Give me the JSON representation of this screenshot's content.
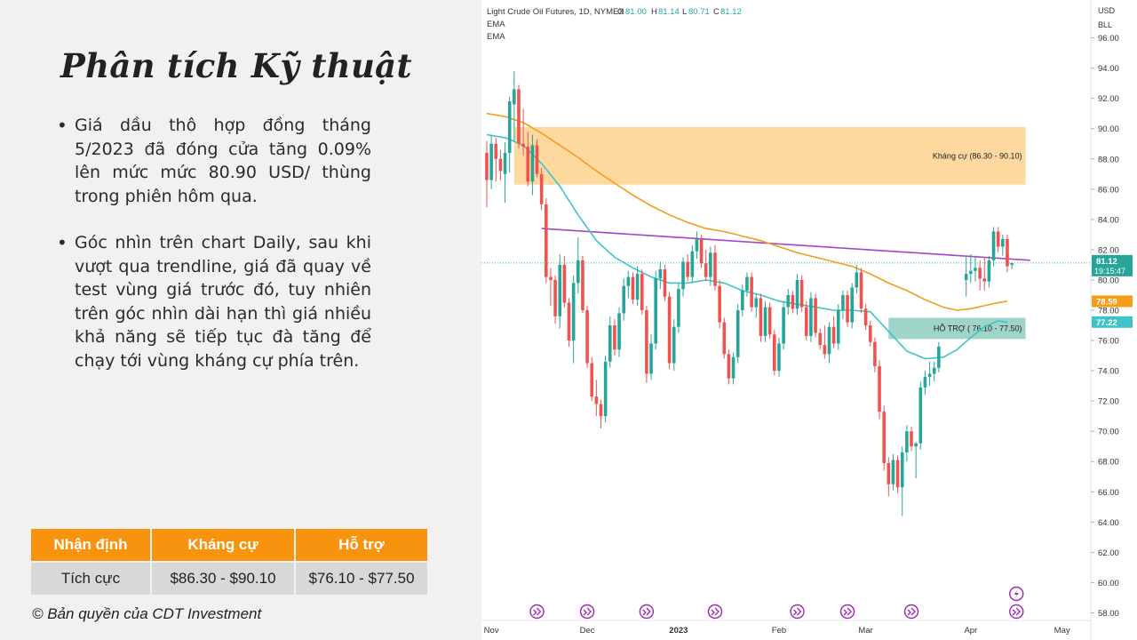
{
  "slide": {
    "title": "Phân tích Kỹ thuật",
    "bullets": [
      "Giá dầu thô hợp đồng tháng 5/2023 đã đóng cửa tăng 0.09% lên mức mức 80.90 USD/ thùng trong phiên hôm qua.",
      "Góc nhìn trên chart Daily, sau khi vượt qua trendline, giá đã quay về test vùng giá trước đó, tuy nhiên trên góc nhìn dài hạn thì giá nhiều khả năng sẽ tiếp tục đà tăng để chạy tới vùng kháng cự phía trên."
    ],
    "table": {
      "headers": [
        "Nhận định",
        "Kháng cự",
        "Hỗ trợ"
      ],
      "row": [
        "Tích cực",
        "$86.30 - $90.10",
        "$76.10 - $77.50"
      ]
    },
    "copyright": "© Bản quyền của CDT Investment"
  },
  "chart_data": {
    "type": "candlestick",
    "header": {
      "symbol": "Light Crude Oil Futures, 1D, NYMEX",
      "o_label": "O",
      "o_value": "81.00",
      "h_label": "H",
      "h_value": "81.14",
      "l_label": "L",
      "l_value": "80.71",
      "c_label": "C",
      "c_value": "81.12",
      "indicators": [
        "EMA",
        "EMA"
      ]
    },
    "currency": "USD",
    "unit": "BLL",
    "y_ticks": [
      "58.00",
      "60.00",
      "62.00",
      "64.00",
      "66.00",
      "68.00",
      "70.00",
      "72.00",
      "74.00",
      "76.00",
      "78.00",
      "80.00",
      "82.00",
      "84.00",
      "86.00",
      "88.00",
      "90.00",
      "92.00",
      "94.00",
      "96.00"
    ],
    "ylim": [
      57.5,
      98.5
    ],
    "x_ticks": [
      {
        "label": "Nov",
        "index": 1
      },
      {
        "label": "Dec",
        "index": 22
      },
      {
        "label": "2023",
        "index": 42
      },
      {
        "label": "Feb",
        "index": 64
      },
      {
        "label": "Mar",
        "index": 83
      },
      {
        "label": "Apr",
        "index": 106
      },
      {
        "label": "May",
        "index": 126
      }
    ],
    "n_slots": 130,
    "candles": [
      {
        "i": 0,
        "o": 88.4,
        "h": 89.2,
        "l": 84.8,
        "c": 86.6
      },
      {
        "i": 1,
        "o": 86.6,
        "h": 89.6,
        "l": 86.0,
        "c": 89.0
      },
      {
        "i": 2,
        "o": 89.0,
        "h": 89.4,
        "l": 86.5,
        "c": 88.0
      },
      {
        "i": 3,
        "o": 88.0,
        "h": 88.6,
        "l": 86.6,
        "c": 87.2
      },
      {
        "i": 4,
        "o": 87.0,
        "h": 89.1,
        "l": 85.1,
        "c": 88.4
      },
      {
        "i": 5,
        "o": 88.4,
        "h": 92.1,
        "l": 87.1,
        "c": 91.8
      },
      {
        "i": 6,
        "o": 91.6,
        "h": 93.8,
        "l": 89.2,
        "c": 92.6
      },
      {
        "i": 7,
        "o": 92.6,
        "h": 92.9,
        "l": 88.7,
        "c": 89.0
      },
      {
        "i": 8,
        "o": 89.0,
        "h": 91.3,
        "l": 88.2,
        "c": 88.8
      },
      {
        "i": 9,
        "o": 88.8,
        "h": 89.8,
        "l": 86.2,
        "c": 86.5
      },
      {
        "i": 10,
        "o": 86.5,
        "h": 89.6,
        "l": 85.6,
        "c": 88.9
      },
      {
        "i": 11,
        "o": 88.9,
        "h": 89.3,
        "l": 86.8,
        "c": 87.0
      },
      {
        "i": 12,
        "o": 87.0,
        "h": 87.4,
        "l": 84.6,
        "c": 85.0
      },
      {
        "i": 13,
        "o": 85.0,
        "h": 85.4,
        "l": 79.8,
        "c": 80.2
      },
      {
        "i": 14,
        "o": 80.2,
        "h": 80.8,
        "l": 78.3,
        "c": 80.0
      },
      {
        "i": 15,
        "o": 80.0,
        "h": 80.3,
        "l": 77.1,
        "c": 77.6
      },
      {
        "i": 16,
        "o": 77.6,
        "h": 81.7,
        "l": 76.8,
        "c": 81.0
      },
      {
        "i": 17,
        "o": 81.0,
        "h": 81.6,
        "l": 78.2,
        "c": 78.5
      },
      {
        "i": 18,
        "o": 78.5,
        "h": 78.8,
        "l": 75.6,
        "c": 76.0
      },
      {
        "i": 19,
        "o": 76.0,
        "h": 80.3,
        "l": 74.5,
        "c": 79.8
      },
      {
        "i": 20,
        "o": 79.8,
        "h": 82.8,
        "l": 79.1,
        "c": 81.3
      },
      {
        "i": 21,
        "o": 81.3,
        "h": 81.6,
        "l": 77.8,
        "c": 78.0
      },
      {
        "i": 22,
        "o": 78.0,
        "h": 78.3,
        "l": 74.2,
        "c": 74.5
      },
      {
        "i": 23,
        "o": 74.5,
        "h": 74.9,
        "l": 72.0,
        "c": 72.3
      },
      {
        "i": 24,
        "o": 72.3,
        "h": 73.4,
        "l": 71.0,
        "c": 71.8
      },
      {
        "i": 25,
        "o": 71.8,
        "h": 72.1,
        "l": 70.2,
        "c": 71.0
      },
      {
        "i": 26,
        "o": 71.0,
        "h": 75.0,
        "l": 70.6,
        "c": 74.6
      },
      {
        "i": 27,
        "o": 74.6,
        "h": 77.6,
        "l": 74.2,
        "c": 77.0
      },
      {
        "i": 28,
        "o": 77.0,
        "h": 77.4,
        "l": 75.0,
        "c": 75.4
      },
      {
        "i": 29,
        "o": 75.4,
        "h": 78.2,
        "l": 74.9,
        "c": 77.8
      },
      {
        "i": 30,
        "o": 77.8,
        "h": 80.1,
        "l": 77.3,
        "c": 79.6
      },
      {
        "i": 31,
        "o": 79.6,
        "h": 80.6,
        "l": 78.8,
        "c": 80.2
      },
      {
        "i": 32,
        "o": 80.2,
        "h": 80.5,
        "l": 78.4,
        "c": 78.7
      },
      {
        "i": 33,
        "o": 78.7,
        "h": 80.9,
        "l": 78.3,
        "c": 80.4
      },
      {
        "i": 34,
        "o": 80.4,
        "h": 80.7,
        "l": 77.7,
        "c": 78.0
      },
      {
        "i": 35,
        "o": 78.0,
        "h": 78.3,
        "l": 73.2,
        "c": 73.8
      },
      {
        "i": 36,
        "o": 73.8,
        "h": 76.4,
        "l": 73.4,
        "c": 75.8
      },
      {
        "i": 37,
        "o": 75.8,
        "h": 80.6,
        "l": 75.4,
        "c": 80.1
      },
      {
        "i": 38,
        "o": 80.1,
        "h": 81.2,
        "l": 79.4,
        "c": 80.7
      },
      {
        "i": 39,
        "o": 80.7,
        "h": 81.0,
        "l": 78.6,
        "c": 78.9
      },
      {
        "i": 40,
        "o": 78.9,
        "h": 79.2,
        "l": 74.1,
        "c": 74.5
      },
      {
        "i": 41,
        "o": 74.5,
        "h": 77.4,
        "l": 74.0,
        "c": 76.9
      },
      {
        "i": 42,
        "o": 76.9,
        "h": 79.8,
        "l": 76.5,
        "c": 79.4
      },
      {
        "i": 43,
        "o": 79.4,
        "h": 81.5,
        "l": 78.9,
        "c": 81.2
      },
      {
        "i": 44,
        "o": 81.2,
        "h": 81.7,
        "l": 79.9,
        "c": 80.2
      },
      {
        "i": 45,
        "o": 80.2,
        "h": 82.3,
        "l": 79.8,
        "c": 81.9
      },
      {
        "i": 46,
        "o": 81.9,
        "h": 83.2,
        "l": 81.4,
        "c": 82.7
      },
      {
        "i": 47,
        "o": 82.7,
        "h": 83.0,
        "l": 80.8,
        "c": 81.1
      },
      {
        "i": 48,
        "o": 81.1,
        "h": 82.0,
        "l": 79.9,
        "c": 80.2
      },
      {
        "i": 49,
        "o": 80.2,
        "h": 82.2,
        "l": 79.6,
        "c": 81.8
      },
      {
        "i": 50,
        "o": 81.8,
        "h": 82.3,
        "l": 79.3,
        "c": 79.6
      },
      {
        "i": 51,
        "o": 79.6,
        "h": 80.0,
        "l": 76.8,
        "c": 77.2
      },
      {
        "i": 52,
        "o": 77.2,
        "h": 77.5,
        "l": 74.8,
        "c": 75.1
      },
      {
        "i": 53,
        "o": 75.1,
        "h": 75.4,
        "l": 73.1,
        "c": 73.5
      },
      {
        "i": 54,
        "o": 73.5,
        "h": 75.2,
        "l": 73.1,
        "c": 74.9
      },
      {
        "i": 55,
        "o": 74.9,
        "h": 78.4,
        "l": 74.5,
        "c": 78.0
      },
      {
        "i": 56,
        "o": 78.0,
        "h": 79.7,
        "l": 77.6,
        "c": 79.3
      },
      {
        "i": 57,
        "o": 79.3,
        "h": 80.5,
        "l": 78.9,
        "c": 80.2
      },
      {
        "i": 58,
        "o": 80.2,
        "h": 80.5,
        "l": 77.9,
        "c": 78.2
      },
      {
        "i": 59,
        "o": 78.2,
        "h": 79.1,
        "l": 77.5,
        "c": 78.8
      },
      {
        "i": 60,
        "o": 78.8,
        "h": 79.1,
        "l": 75.9,
        "c": 76.3
      },
      {
        "i": 61,
        "o": 76.3,
        "h": 78.6,
        "l": 75.9,
        "c": 78.2
      },
      {
        "i": 62,
        "o": 78.2,
        "h": 78.5,
        "l": 76.1,
        "c": 76.4
      },
      {
        "i": 63,
        "o": 76.4,
        "h": 76.7,
        "l": 73.7,
        "c": 74.0
      },
      {
        "i": 64,
        "o": 74.0,
        "h": 76.2,
        "l": 73.6,
        "c": 75.8
      },
      {
        "i": 65,
        "o": 75.8,
        "h": 78.6,
        "l": 75.4,
        "c": 78.2
      },
      {
        "i": 66,
        "o": 78.2,
        "h": 79.4,
        "l": 77.7,
        "c": 79.0
      },
      {
        "i": 67,
        "o": 79.0,
        "h": 79.3,
        "l": 77.8,
        "c": 78.1
      },
      {
        "i": 68,
        "o": 78.1,
        "h": 80.4,
        "l": 77.7,
        "c": 80.0
      },
      {
        "i": 69,
        "o": 80.0,
        "h": 80.3,
        "l": 77.9,
        "c": 78.2
      },
      {
        "i": 70,
        "o": 78.2,
        "h": 78.6,
        "l": 76.0,
        "c": 76.3
      },
      {
        "i": 71,
        "o": 76.3,
        "h": 79.2,
        "l": 75.9,
        "c": 78.8
      },
      {
        "i": 72,
        "o": 78.8,
        "h": 79.1,
        "l": 76.2,
        "c": 76.5
      },
      {
        "i": 73,
        "o": 76.5,
        "h": 76.8,
        "l": 75.4,
        "c": 75.7
      },
      {
        "i": 74,
        "o": 75.7,
        "h": 77.0,
        "l": 74.8,
        "c": 75.1
      },
      {
        "i": 75,
        "o": 75.1,
        "h": 77.2,
        "l": 74.5,
        "c": 76.9
      },
      {
        "i": 76,
        "o": 76.9,
        "h": 77.6,
        "l": 75.5,
        "c": 75.8
      },
      {
        "i": 77,
        "o": 75.8,
        "h": 78.4,
        "l": 75.4,
        "c": 78.0
      },
      {
        "i": 78,
        "o": 78.0,
        "h": 79.3,
        "l": 77.4,
        "c": 79.0
      },
      {
        "i": 79,
        "o": 79.0,
        "h": 79.3,
        "l": 76.9,
        "c": 77.2
      },
      {
        "i": 80,
        "o": 77.2,
        "h": 79.8,
        "l": 76.8,
        "c": 79.5
      },
      {
        "i": 81,
        "o": 79.5,
        "h": 81.0,
        "l": 79.1,
        "c": 80.5
      },
      {
        "i": 82,
        "o": 80.5,
        "h": 80.8,
        "l": 77.8,
        "c": 78.1
      },
      {
        "i": 83,
        "o": 78.1,
        "h": 78.4,
        "l": 76.7,
        "c": 77.0
      },
      {
        "i": 84,
        "o": 77.0,
        "h": 77.3,
        "l": 75.6,
        "c": 75.9
      },
      {
        "i": 85,
        "o": 75.9,
        "h": 76.2,
        "l": 73.9,
        "c": 74.3
      },
      {
        "i": 86,
        "o": 74.3,
        "h": 74.7,
        "l": 70.8,
        "c": 71.3
      },
      {
        "i": 87,
        "o": 71.3,
        "h": 71.7,
        "l": 67.4,
        "c": 67.9
      },
      {
        "i": 88,
        "o": 67.9,
        "h": 68.3,
        "l": 65.7,
        "c": 66.5
      },
      {
        "i": 89,
        "o": 66.5,
        "h": 68.5,
        "l": 66.1,
        "c": 68.1
      },
      {
        "i": 90,
        "o": 68.1,
        "h": 68.4,
        "l": 65.9,
        "c": 66.3
      },
      {
        "i": 91,
        "o": 66.3,
        "h": 69.0,
        "l": 64.4,
        "c": 68.6
      },
      {
        "i": 92,
        "o": 68.6,
        "h": 70.4,
        "l": 68.0,
        "c": 70.0
      },
      {
        "i": 93,
        "o": 70.0,
        "h": 70.3,
        "l": 68.7,
        "c": 69.0
      },
      {
        "i": 94,
        "o": 69.0,
        "h": 69.3,
        "l": 66.9,
        "c": 69.2
      },
      {
        "i": 95,
        "o": 69.2,
        "h": 73.3,
        "l": 68.8,
        "c": 72.9
      },
      {
        "i": 96,
        "o": 72.9,
        "h": 74.0,
        "l": 72.4,
        "c": 73.6
      },
      {
        "i": 97,
        "o": 73.6,
        "h": 74.6,
        "l": 73.0,
        "c": 73.8
      },
      {
        "i": 98,
        "o": 73.8,
        "h": 74.6,
        "l": 73.3,
        "c": 74.2
      },
      {
        "i": 99,
        "o": 74.2,
        "h": 75.9,
        "l": 73.9,
        "c": 75.6
      },
      {
        "i": 105,
        "o": 80.0,
        "h": 81.6,
        "l": 78.9,
        "c": 80.4
      },
      {
        "i": 106,
        "o": 80.4,
        "h": 81.7,
        "l": 79.8,
        "c": 80.6
      },
      {
        "i": 107,
        "o": 80.6,
        "h": 81.6,
        "l": 79.9,
        "c": 80.8
      },
      {
        "i": 108,
        "o": 80.8,
        "h": 81.3,
        "l": 79.3,
        "c": 80.1
      },
      {
        "i": 109,
        "o": 80.1,
        "h": 81.5,
        "l": 79.3,
        "c": 79.9
      },
      {
        "i": 110,
        "o": 79.9,
        "h": 81.6,
        "l": 79.5,
        "c": 81.3
      },
      {
        "i": 111,
        "o": 81.3,
        "h": 83.5,
        "l": 80.9,
        "c": 83.2
      },
      {
        "i": 112,
        "o": 83.2,
        "h": 83.5,
        "l": 81.8,
        "c": 82.2
      },
      {
        "i": 113,
        "o": 82.2,
        "h": 83.0,
        "l": 81.6,
        "c": 82.7
      },
      {
        "i": 114,
        "o": 82.7,
        "h": 83.0,
        "l": 80.5,
        "c": 80.9
      },
      {
        "i": 115,
        "o": 81.0,
        "h": 81.14,
        "l": 80.71,
        "c": 81.12
      }
    ],
    "ema_slow": {
      "color": "#f59d1b",
      "points": [
        [
          0,
          91.0
        ],
        [
          4,
          90.8
        ],
        [
          8,
          90.4
        ],
        [
          12,
          89.7
        ],
        [
          16,
          88.9
        ],
        [
          20,
          88.1
        ],
        [
          24,
          87.2
        ],
        [
          28,
          86.4
        ],
        [
          32,
          85.6
        ],
        [
          36,
          84.9
        ],
        [
          40,
          84.3
        ],
        [
          44,
          83.8
        ],
        [
          48,
          83.4
        ],
        [
          52,
          83.2
        ],
        [
          56,
          82.9
        ],
        [
          60,
          82.6
        ],
        [
          64,
          82.2
        ],
        [
          68,
          81.8
        ],
        [
          72,
          81.5
        ],
        [
          76,
          81.2
        ],
        [
          80,
          80.9
        ],
        [
          84,
          80.4
        ],
        [
          88,
          79.8
        ],
        [
          92,
          79.3
        ],
        [
          96,
          78.7
        ],
        [
          100,
          78.2
        ],
        [
          103,
          78.0
        ],
        [
          106,
          78.1
        ],
        [
          109,
          78.3
        ],
        [
          112,
          78.5
        ],
        [
          114,
          78.6
        ]
      ]
    },
    "ema_fast": {
      "color": "#3cc4c9",
      "points": [
        [
          0,
          89.6
        ],
        [
          4,
          89.4
        ],
        [
          8,
          88.9
        ],
        [
          12,
          87.7
        ],
        [
          16,
          86.2
        ],
        [
          20,
          84.3
        ],
        [
          24,
          82.6
        ],
        [
          28,
          81.5
        ],
        [
          32,
          80.8
        ],
        [
          36,
          80.2
        ],
        [
          40,
          79.8
        ],
        [
          44,
          79.8
        ],
        [
          48,
          80.0
        ],
        [
          52,
          79.8
        ],
        [
          56,
          79.3
        ],
        [
          60,
          79.0
        ],
        [
          64,
          78.6
        ],
        [
          68,
          78.4
        ],
        [
          72,
          78.2
        ],
        [
          76,
          78.0
        ],
        [
          80,
          78.0
        ],
        [
          84,
          77.9
        ],
        [
          88,
          76.6
        ],
        [
          92,
          75.3
        ],
        [
          96,
          74.8
        ],
        [
          100,
          74.9
        ],
        [
          103,
          75.4
        ],
        [
          106,
          76.2
        ],
        [
          109,
          76.9
        ],
        [
          112,
          77.3
        ],
        [
          114,
          77.2
        ]
      ]
    },
    "trendline": {
      "color": "#a547c6",
      "from": [
        12,
        83.4
      ],
      "to": [
        119,
        81.3
      ]
    },
    "zones": [
      {
        "label": "Kháng cự (86.30 - 90.10)",
        "low": 86.3,
        "high": 90.1,
        "from": 6,
        "to": 118,
        "color": "#fdd9a0",
        "label_align": "right"
      },
      {
        "label": "HỖ TRỢ ( 76.10 - 77.50)",
        "low": 76.1,
        "high": 77.5,
        "from": 88,
        "to": 118,
        "color": "#9fd5c8",
        "label_align": "right"
      }
    ],
    "price_tags": [
      {
        "text": "81.12",
        "sub": "19:15:47",
        "value": 81.12,
        "color": "#26a69a"
      },
      {
        "text": "78.59",
        "value": 78.59,
        "color": "#f59d1b"
      },
      {
        "text": "77.22",
        "value": 77.22,
        "color": "#3cc4c9"
      }
    ],
    "last_price": 81.12,
    "event_markers": [
      11,
      22,
      35,
      50,
      68,
      79,
      93,
      116
    ]
  }
}
